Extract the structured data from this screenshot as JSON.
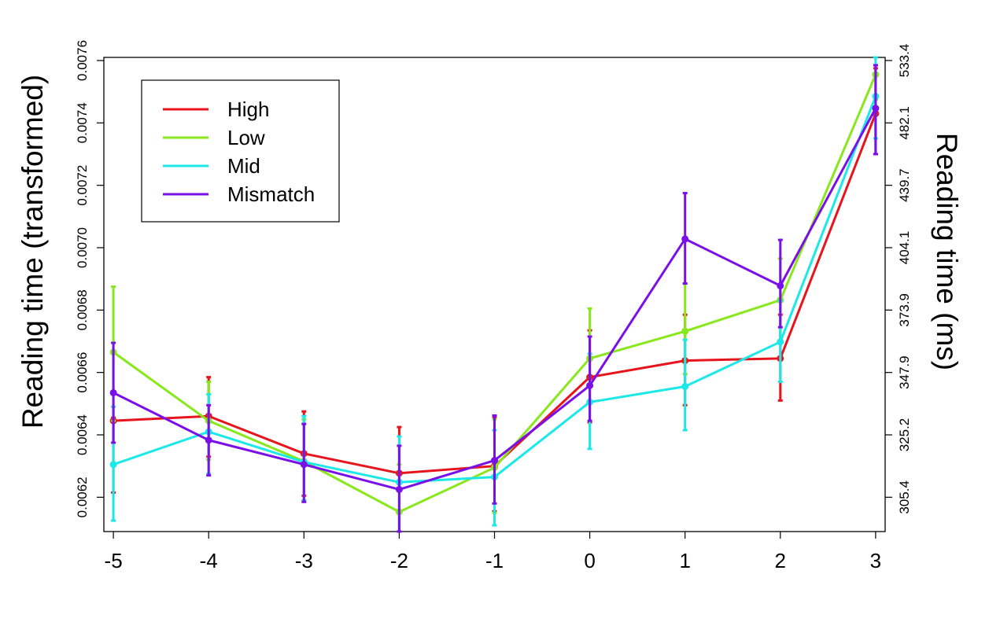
{
  "chart_data": {
    "type": "line",
    "title": "",
    "xlabel": "",
    "ylabel": "Reading time (transformed)",
    "y2label": "Reading time (ms)",
    "categories": [
      "-5",
      "-4",
      "-3",
      "-2",
      "-1",
      "0",
      "1",
      "2",
      "3"
    ],
    "x": [
      -5,
      -4,
      -3,
      -2,
      -1,
      0,
      1,
      2,
      3
    ],
    "xlim": [
      -5.1,
      3.1
    ],
    "ylim": [
      0.00609,
      0.00761
    ],
    "y_ticks": [
      "0.0062",
      "0.0064",
      "0.0066",
      "0.0068",
      "0.0070",
      "0.0072",
      "0.0074",
      "0.0076"
    ],
    "y_tick_values": [
      0.0062,
      0.0064,
      0.0066,
      0.0068,
      0.007,
      0.0072,
      0.0074,
      0.0076
    ],
    "y2_ticks": [
      "305.4",
      "325.2",
      "347.9",
      "373.9",
      "404.1",
      "439.7",
      "482.1",
      "533.4"
    ],
    "legend_position": "top-left",
    "grid": false,
    "series": [
      {
        "name": "High",
        "color": "#e8141c",
        "values": [
          0.006445,
          0.00646,
          0.00634,
          0.006277,
          0.0063,
          0.006585,
          0.006638,
          0.006645,
          0.00743
        ],
        "err_low": [
          0.006215,
          0.00633,
          0.006205,
          0.00609,
          0.006155,
          0.00644,
          0.006495,
          0.00651,
          0.0073
        ],
        "err_high": [
          0.006455,
          0.006585,
          0.006475,
          0.006425,
          0.006455,
          0.006735,
          0.006785,
          0.006785,
          0.007575
        ]
      },
      {
        "name": "Low",
        "color": "#88e81c",
        "values": [
          0.006665,
          0.006445,
          0.006315,
          0.006153,
          0.006295,
          0.006645,
          0.006732,
          0.006832,
          0.007555
        ],
        "err_low": [
          0.006445,
          0.00632,
          0.00619,
          0.00609,
          0.00615,
          0.00651,
          0.006595,
          0.006695,
          0.007475
        ],
        "err_high": [
          0.006875,
          0.00657,
          0.00645,
          0.006305,
          0.00645,
          0.006805,
          0.006885,
          0.006965,
          0.007585
        ]
      },
      {
        "name": "Mid",
        "color": "#1ce8e8",
        "values": [
          0.006305,
          0.00641,
          0.006313,
          0.006248,
          0.006265,
          0.006505,
          0.006555,
          0.006698,
          0.007485
        ],
        "err_low": [
          0.006125,
          0.006275,
          0.00619,
          0.00609,
          0.00611,
          0.006355,
          0.006415,
          0.00657,
          0.00735
        ],
        "err_high": [
          0.00649,
          0.00653,
          0.00646,
          0.006395,
          0.006415,
          0.00666,
          0.006705,
          0.00683,
          0.00761
        ]
      },
      {
        "name": "Mismatch",
        "color": "#7a10e8",
        "values": [
          0.006535,
          0.006383,
          0.006305,
          0.006225,
          0.006318,
          0.006558,
          0.007028,
          0.006878,
          0.007447
        ],
        "err_low": [
          0.006375,
          0.00627,
          0.006185,
          0.00609,
          0.00618,
          0.006445,
          0.006885,
          0.006745,
          0.0073
        ],
        "err_high": [
          0.006695,
          0.006495,
          0.006435,
          0.006365,
          0.006462,
          0.006715,
          0.007175,
          0.007025,
          0.007585
        ]
      }
    ]
  }
}
